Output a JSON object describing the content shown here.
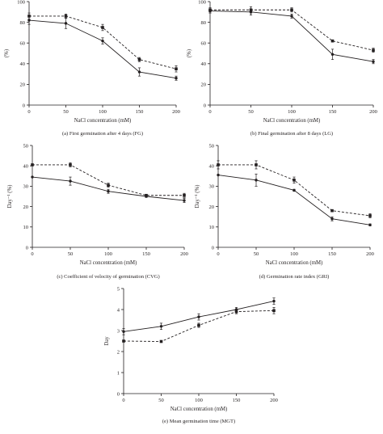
{
  "chart_data": [
    {
      "id": "a",
      "type": "line",
      "caption": "(a)   First germination after 4 days (FG)",
      "xlabel": "NaCl concentration (mM)",
      "ylabel": "(%)",
      "x": [
        0,
        50,
        100,
        150,
        200
      ],
      "xticks": [
        "0",
        "50",
        "100",
        "150",
        "200"
      ],
      "xlim": [
        0,
        200
      ],
      "ylim": [
        0,
        100
      ],
      "yticks": [
        "0",
        "20",
        "40",
        "60",
        "80",
        "100"
      ],
      "series": [
        {
          "style": "solid",
          "marker": "circle",
          "values": [
            82,
            79,
            62,
            32,
            26
          ],
          "errors": [
            4,
            5,
            3,
            4,
            2
          ]
        },
        {
          "style": "dashed",
          "marker": "square",
          "values": [
            86,
            86,
            75,
            44,
            35
          ],
          "errors": [
            3,
            2,
            3,
            2,
            3
          ]
        }
      ]
    },
    {
      "id": "b",
      "type": "line",
      "caption": "(b)   Final germination after 8 days (LG)",
      "xlabel": "NaCl concentration (mM)",
      "ylabel": "(%)",
      "x": [
        0,
        50,
        100,
        150,
        200
      ],
      "xticks": [
        "0",
        "50",
        "100",
        "150",
        "200"
      ],
      "xlim": [
        0,
        200
      ],
      "ylim": [
        0,
        100
      ],
      "yticks": [
        "0",
        "20",
        "40",
        "60",
        "80",
        "100"
      ],
      "series": [
        {
          "style": "solid",
          "marker": "circle",
          "values": [
            91,
            90,
            86,
            49,
            42
          ],
          "errors": [
            2,
            3,
            2,
            5,
            2
          ]
        },
        {
          "style": "dashed",
          "marker": "square",
          "values": [
            92,
            92,
            92,
            62,
            53
          ],
          "errors": [
            2,
            3,
            2,
            1,
            2
          ]
        }
      ]
    },
    {
      "id": "c",
      "type": "line",
      "caption": "(c)   Coefficient of velocity of germination (CVG)",
      "xlabel": "NaCl concentration (mM)",
      "ylabel": "Day⁻¹ (%)",
      "x": [
        0,
        50,
        100,
        150,
        200
      ],
      "xticks": [
        "0",
        "50",
        "100",
        "150",
        "200"
      ],
      "xlim": [
        0,
        200
      ],
      "ylim": [
        0,
        50
      ],
      "yticks": [
        "0",
        "10",
        "20",
        "30",
        "40",
        "50"
      ],
      "series": [
        {
          "style": "solid",
          "marker": "circle",
          "values": [
            34.5,
            32.5,
            27.5,
            25,
            23
          ],
          "errors": [
            0,
            2,
            1,
            0.5,
            1
          ]
        },
        {
          "style": "dashed",
          "marker": "square",
          "values": [
            40.5,
            40.5,
            30.5,
            25.5,
            25.5
          ],
          "errors": [
            0,
            1,
            1,
            0.5,
            1
          ]
        }
      ]
    },
    {
      "id": "d",
      "type": "line",
      "caption": "(d)   Germination rate index (GRI)",
      "xlabel": "NaCl concentration (mM)",
      "ylabel": "Day⁻¹ (%)",
      "x": [
        0,
        50,
        100,
        150,
        200
      ],
      "xticks": [
        "0",
        "50",
        "100",
        "150",
        "200"
      ],
      "xlim": [
        0,
        200
      ],
      "ylim": [
        0,
        50
      ],
      "yticks": [
        "0",
        "10",
        "20",
        "30",
        "40",
        "50"
      ],
      "series": [
        {
          "style": "solid",
          "marker": "circle",
          "values": [
            35.5,
            33,
            28,
            14,
            11
          ],
          "errors": [
            0,
            3,
            0.5,
            1,
            0.5
          ]
        },
        {
          "style": "dashed",
          "marker": "square",
          "values": [
            40.5,
            40.5,
            33,
            18,
            15.5
          ],
          "errors": [
            2,
            2,
            1.5,
            0.5,
            1
          ]
        }
      ]
    },
    {
      "id": "e",
      "type": "line",
      "caption": "(e)   Mean germination time (MGT)",
      "xlabel": "NaCl concentration (mM)",
      "ylabel": "Day",
      "x": [
        0,
        50,
        100,
        150,
        200
      ],
      "xticks": [
        "0",
        "50",
        "100",
        "150",
        "200"
      ],
      "xlim": [
        0,
        200
      ],
      "ylim": [
        0,
        5
      ],
      "yticks": [
        "0",
        "1",
        "2",
        "3",
        "4",
        "5"
      ],
      "series": [
        {
          "style": "solid",
          "marker": "circle",
          "values": [
            2.95,
            3.2,
            3.65,
            4.0,
            4.4
          ],
          "errors": [
            0.15,
            0.15,
            0.15,
            0.1,
            0.15
          ]
        },
        {
          "style": "dashed",
          "marker": "square",
          "values": [
            2.5,
            2.48,
            3.25,
            3.9,
            3.95
          ],
          "errors": [
            0,
            0,
            0.1,
            0.1,
            0.15
          ]
        }
      ]
    }
  ]
}
